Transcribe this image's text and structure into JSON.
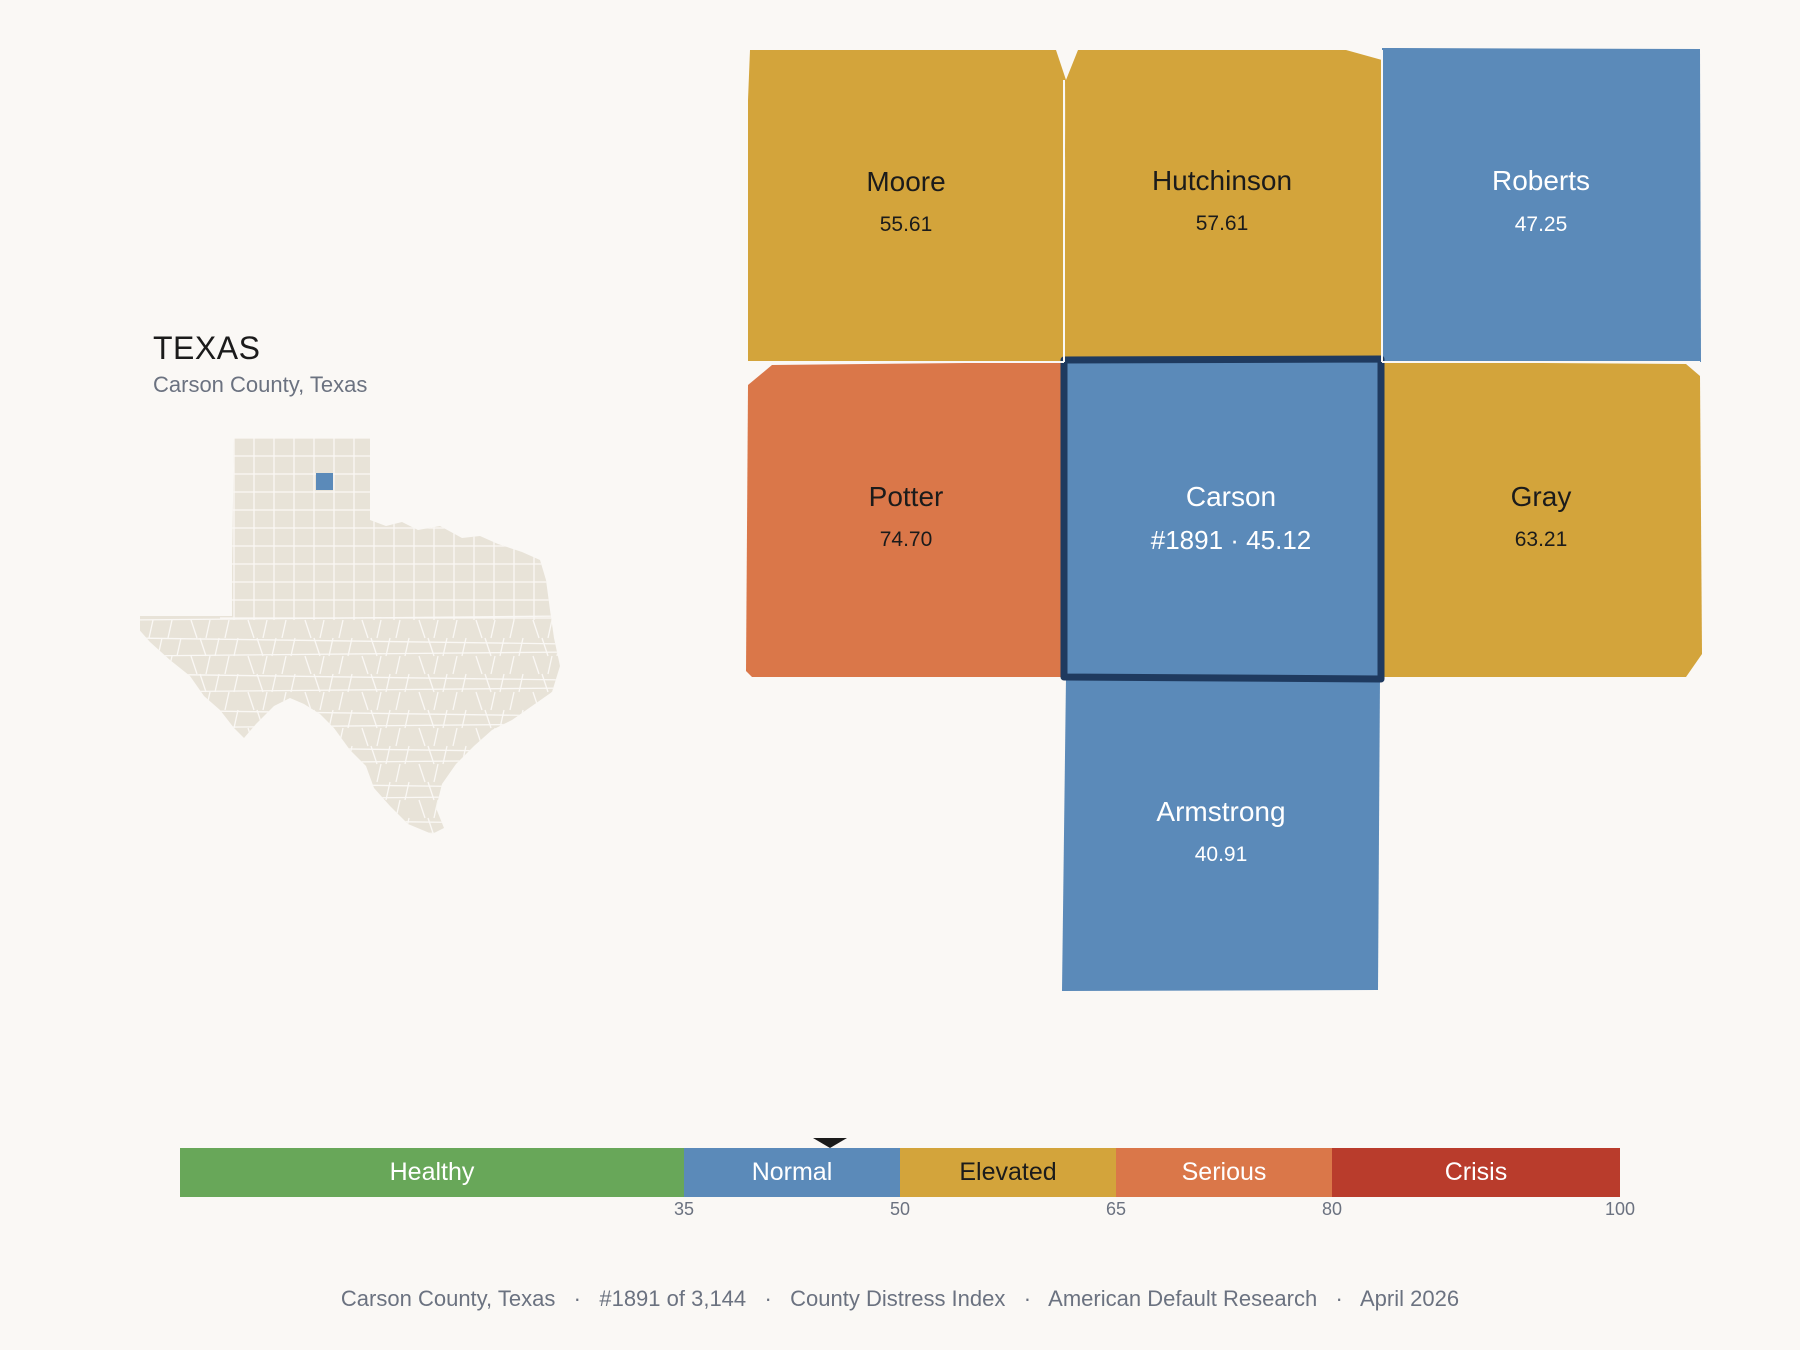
{
  "header": {
    "state_name": "TEXAS",
    "subtitle": "Carson County, Texas"
  },
  "colors": {
    "healthy": "#68a759",
    "normal": "#5b8ab9",
    "elevated": "#d3a43b",
    "serious": "#da7749",
    "crisis": "#b93c2c",
    "focus_outline": "#1f3a5f",
    "state_fill": "#e8e3d8"
  },
  "counties": [
    {
      "name": "Moore",
      "value": "55.61",
      "category": "elevated"
    },
    {
      "name": "Hutchinson",
      "value": "57.61",
      "category": "elevated"
    },
    {
      "name": "Roberts",
      "value": "47.25",
      "category": "normal"
    },
    {
      "name": "Potter",
      "value": "74.70",
      "category": "serious"
    },
    {
      "name": "Carson",
      "value": "#1891 · 45.12",
      "category": "normal",
      "focus": true
    },
    {
      "name": "Gray",
      "value": "63.21",
      "category": "elevated"
    },
    {
      "name": "Armstrong",
      "value": "40.91",
      "category": "normal"
    }
  ],
  "legend": {
    "segments": [
      {
        "label": "Healthy",
        "from": 0,
        "to": 35
      },
      {
        "label": "Normal",
        "from": 35,
        "to": 50
      },
      {
        "label": "Elevated",
        "from": 50,
        "to": 65
      },
      {
        "label": "Serious",
        "from": 65,
        "to": 80
      },
      {
        "label": "Crisis",
        "from": 80,
        "to": 100
      }
    ],
    "ticks": [
      "35",
      "50",
      "65",
      "80",
      "100"
    ],
    "marker_value": 45.12
  },
  "footer": {
    "county": "Carson County, Texas",
    "rank": "#1891 of 3,144",
    "index": "County Distress Index",
    "source": "American Default Research",
    "date": "April 2026",
    "separator": "·"
  }
}
